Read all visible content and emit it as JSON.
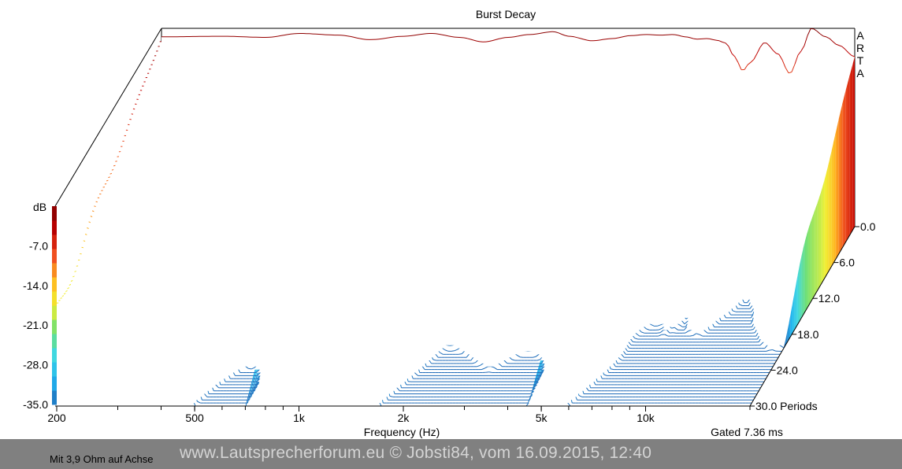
{
  "chart_data": {
    "type": "waterfall",
    "title": "Burst Decay",
    "brand": "ARTA",
    "xlabel": "Frequency (Hz)",
    "x_scale": "log",
    "xlim": [
      200,
      20000
    ],
    "x_ticks": [
      {
        "value": 200,
        "label": "200"
      },
      {
        "value": 500,
        "label": "500"
      },
      {
        "value": 1000,
        "label": "1k"
      },
      {
        "value": 2000,
        "label": "2k"
      },
      {
        "value": 5000,
        "label": "5k"
      },
      {
        "value": 10000,
        "label": "10k"
      }
    ],
    "zlabel": "dB",
    "zlim": [
      -35,
      0
    ],
    "z_ticks": [
      "-7.0",
      "-14.0",
      "-21.0",
      "-28.0",
      "-35.0"
    ],
    "depth_label": "Periods",
    "depth_range": [
      0,
      30
    ],
    "depth_ticks": [
      "0.0",
      "6.0",
      "12.0",
      "18.0",
      "24.0",
      "30.0 Periods"
    ],
    "gate_label": "Gated 7.36 ms",
    "colormap": [
      "#1e6ab8",
      "#20b4f0",
      "#40d8e0",
      "#70e070",
      "#f0f030",
      "#ffb820",
      "#f05020",
      "#c00000",
      "#800000"
    ],
    "series": [
      {
        "periods": 0,
        "freq_hz": [
          200,
          300,
          400,
          500,
          650,
          800,
          1000,
          1200,
          1450,
          1700,
          2000,
          2300,
          2700,
          3000,
          3500,
          4000,
          4500,
          5000,
          5500,
          6000,
          6500,
          7000,
          7500,
          8000,
          8500,
          9000,
          9500,
          10000,
          11000,
          12000,
          13000,
          14000,
          15000,
          16500,
          18000,
          20000
        ],
        "level_db": [
          -1.5,
          -1.4,
          -1.6,
          -0.9,
          -1.2,
          -2.0,
          -1.4,
          -0.9,
          -1.6,
          -2.4,
          -1.6,
          -1.1,
          -0.6,
          -1.4,
          -2.2,
          -1.8,
          -1.3,
          -1.1,
          -1.2,
          -1.1,
          -1.5,
          -1.9,
          -1.8,
          -2.1,
          -2.6,
          -5.0,
          -7.5,
          -6.0,
          -2.5,
          -4.5,
          -8.0,
          -4.0,
          0.0,
          -1.5,
          -3.0,
          -5.0
        ]
      }
    ]
  },
  "footer": {
    "note": "Mit 3,9 Ohm auf Achse",
    "watermark": "www.Lautsprecherforum.eu © Jobsti84, vom 16.09.2015, 12:40"
  }
}
